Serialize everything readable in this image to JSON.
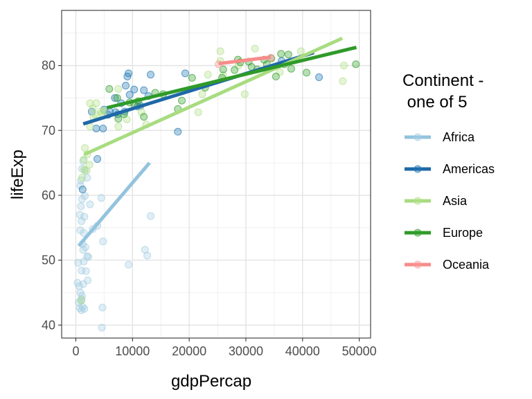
{
  "chart_data": {
    "type": "scatter",
    "xlabel": "gdpPercap",
    "ylabel": "lifeExp",
    "xlim": [
      -2500,
      52000
    ],
    "ylim": [
      38,
      88.5
    ],
    "x_ticks": [
      0,
      10000,
      20000,
      30000,
      40000,
      50000
    ],
    "x_tick_labels": [
      "0",
      "10000",
      "20000",
      "30000",
      "40000",
      "50000"
    ],
    "y_ticks": [
      40,
      50,
      60,
      70,
      80
    ],
    "y_tick_labels": [
      "40",
      "50",
      "60",
      "70",
      "80"
    ],
    "grid": true,
    "legend_position": "right",
    "legend_title_lines": [
      "Continent -",
      " one of 5"
    ],
    "series": [
      {
        "name": "Africa",
        "color": "#a6cee3",
        "line_color": "#93c3de",
        "trend": [
          [
            500,
            52.2
          ],
          [
            13000,
            65.0
          ]
        ],
        "points": [
          [
            300,
            46.5
          ],
          [
            400,
            49.6
          ],
          [
            500,
            43.5
          ],
          [
            600,
            46.0
          ],
          [
            700,
            42.6
          ],
          [
            800,
            45.0
          ],
          [
            900,
            43.8
          ],
          [
            1000,
            42.3
          ],
          [
            1100,
            44.5
          ],
          [
            1200,
            42.8
          ],
          [
            1500,
            42.5
          ],
          [
            700,
            57.0
          ],
          [
            800,
            54.6
          ],
          [
            900,
            58.3
          ],
          [
            1000,
            56.0
          ],
          [
            1100,
            59.4
          ],
          [
            1200,
            52.5
          ],
          [
            1300,
            51.6
          ],
          [
            1400,
            54.2
          ],
          [
            1500,
            56.7
          ],
          [
            1600,
            59.9
          ],
          [
            1800,
            48.3
          ],
          [
            2000,
            50.6
          ],
          [
            2200,
            50.5
          ],
          [
            1700,
            52.0
          ],
          [
            1000,
            48.4
          ],
          [
            1300,
            46.3
          ],
          [
            2100,
            46.9
          ],
          [
            800,
            61.5
          ],
          [
            900,
            62.3
          ],
          [
            1100,
            64.1
          ],
          [
            1300,
            65.3
          ],
          [
            1600,
            63.8
          ],
          [
            2000,
            62.7
          ],
          [
            2500,
            58.6
          ],
          [
            3800,
            55.3
          ],
          [
            4500,
            59.6
          ],
          [
            4800,
            52.9
          ],
          [
            4700,
            42.7
          ],
          [
            4600,
            39.6
          ],
          [
            9300,
            49.3
          ],
          [
            12200,
            51.6
          ],
          [
            12600,
            50.7
          ],
          [
            13200,
            56.8
          ],
          [
            1000,
            44.0
          ],
          [
            1400,
            49.8
          ],
          [
            3000,
            54.8
          ]
        ]
      },
      {
        "name": "Americas",
        "color": "#1f78b4",
        "line_color": "#1f68a8",
        "trend": [
          [
            1300,
            71.0
          ],
          [
            42000,
            82.0
          ]
        ],
        "points": [
          [
            1200,
            60.9
          ],
          [
            3800,
            65.6
          ],
          [
            2800,
            72.9
          ],
          [
            3600,
            70.3
          ],
          [
            4800,
            70.3
          ],
          [
            5700,
            72.4
          ],
          [
            6000,
            72.9
          ],
          [
            6900,
            75.0
          ],
          [
            7000,
            72.8
          ],
          [
            7400,
            72.5
          ],
          [
            8000,
            74.2
          ],
          [
            8600,
            72.9
          ],
          [
            9100,
            78.3
          ],
          [
            9300,
            78.8
          ],
          [
            9500,
            75.5
          ],
          [
            10300,
            76.3
          ],
          [
            10900,
            73.7
          ],
          [
            11400,
            73.8
          ],
          [
            12000,
            76.2
          ],
          [
            12800,
            75.3
          ],
          [
            13200,
            78.6
          ],
          [
            18000,
            69.8
          ],
          [
            19300,
            78.8
          ],
          [
            36300,
            80.7
          ],
          [
            42900,
            78.2
          ],
          [
            8800,
            76.9
          ],
          [
            5000,
            73.2
          ]
        ]
      },
      {
        "name": "Asia",
        "color": "#b2df8a",
        "line_color": "#a8dc80",
        "trend": [
          [
            1500,
            66.3
          ],
          [
            47000,
            84.2
          ]
        ],
        "points": [
          [
            1000,
            43.8
          ],
          [
            1100,
            62.7
          ],
          [
            1400,
            65.5
          ],
          [
            1500,
            64.0
          ],
          [
            1600,
            67.3
          ],
          [
            1900,
            63.8
          ],
          [
            2000,
            66.3
          ],
          [
            2400,
            64.7
          ],
          [
            2500,
            70.6
          ],
          [
            2500,
            74.2
          ],
          [
            3000,
            73.4
          ],
          [
            3100,
            72.0
          ],
          [
            3500,
            72.4
          ],
          [
            3600,
            74.2
          ],
          [
            4400,
            72.9
          ],
          [
            4600,
            72.6
          ],
          [
            4900,
            73.0
          ],
          [
            7500,
            76.4
          ],
          [
            7500,
            70.6
          ],
          [
            9000,
            71.7
          ],
          [
            11600,
            72.8
          ],
          [
            12400,
            70.9
          ],
          [
            21600,
            72.8
          ],
          [
            22300,
            75.6
          ],
          [
            25500,
            82.2
          ],
          [
            25500,
            80.7
          ],
          [
            29800,
            75.6
          ],
          [
            28700,
            80.0
          ],
          [
            31600,
            82.6
          ],
          [
            39700,
            82.2
          ],
          [
            47300,
            80.0
          ],
          [
            47100,
            77.6
          ],
          [
            23300,
            78.6
          ],
          [
            36000,
            79.0
          ],
          [
            26000,
            78.5
          ]
        ]
      },
      {
        "name": "Europe",
        "color": "#33a02c",
        "line_color": "#2f9a29",
        "trend": [
          [
            5500,
            73.5
          ],
          [
            49500,
            82.8
          ]
        ],
        "points": [
          [
            5900,
            76.4
          ],
          [
            7300,
            75.0
          ],
          [
            7500,
            71.8
          ],
          [
            8500,
            72.5
          ],
          [
            9500,
            74.3
          ],
          [
            10300,
            74.0
          ],
          [
            11000,
            74.5
          ],
          [
            12000,
            72.1
          ],
          [
            14000,
            75.8
          ],
          [
            15400,
            75.6
          ],
          [
            18000,
            73.3
          ],
          [
            18700,
            74.6
          ],
          [
            20500,
            78.1
          ],
          [
            22800,
            76.6
          ],
          [
            25800,
            78.1
          ],
          [
            28000,
            79.3
          ],
          [
            28600,
            80.9
          ],
          [
            29000,
            80.5
          ],
          [
            30500,
            80.6
          ],
          [
            32000,
            79.4
          ],
          [
            33200,
            80.9
          ],
          [
            34500,
            81.1
          ],
          [
            35300,
            78.3
          ],
          [
            36200,
            81.8
          ],
          [
            36800,
            80.2
          ],
          [
            37500,
            81.7
          ],
          [
            40700,
            78.9
          ],
          [
            49400,
            80.2
          ],
          [
            33700,
            80.2
          ],
          [
            38000,
            79.5
          ],
          [
            26000,
            79.4
          ],
          [
            31000,
            79.8
          ]
        ]
      },
      {
        "name": "Oceania",
        "color": "#fb9a99",
        "line_color": "#f78c8b",
        "trend": [
          [
            25200,
            80.3
          ],
          [
            34400,
            81.3
          ]
        ],
        "points": [
          [
            25200,
            80.2
          ],
          [
            34400,
            81.2
          ]
        ]
      }
    ]
  }
}
